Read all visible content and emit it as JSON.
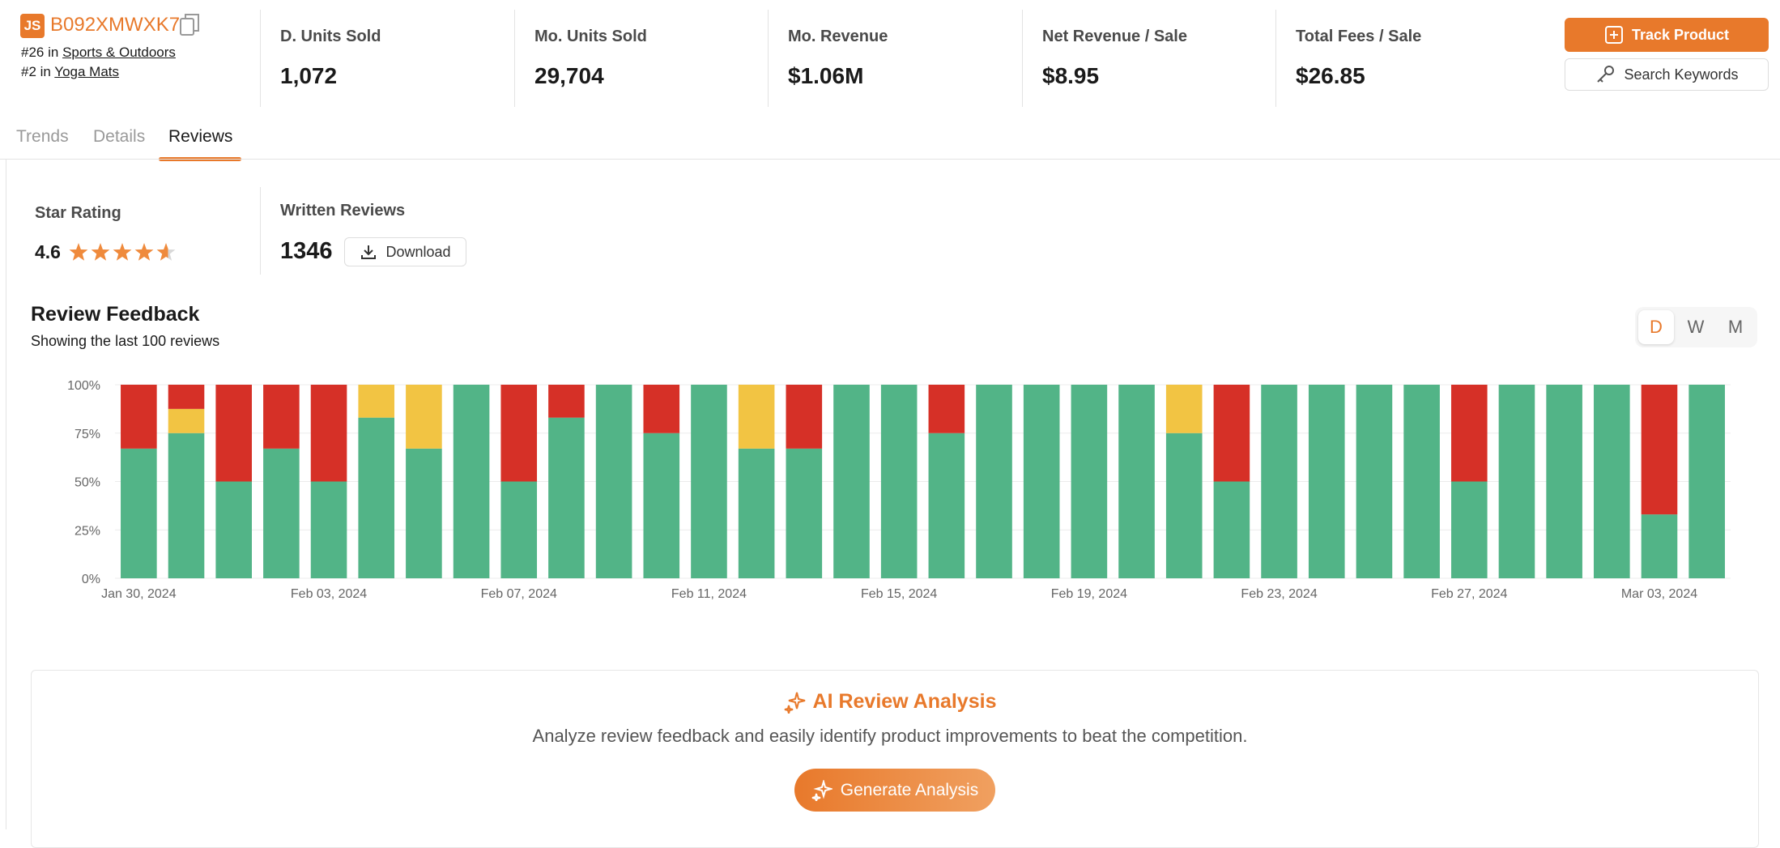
{
  "header": {
    "asin": "B092XMWXK7",
    "logo": "JS",
    "ranks": [
      {
        "rank": "#26 in",
        "category": "Sports & Outdoors"
      },
      {
        "rank": "#2 in",
        "category": "Yoga Mats"
      }
    ]
  },
  "metrics": [
    {
      "label": "D. Units Sold",
      "value": "1,072"
    },
    {
      "label": "Mo. Units Sold",
      "value": "29,704"
    },
    {
      "label": "Mo. Revenue",
      "value": "$1.06M"
    },
    {
      "label": "Net Revenue / Sale",
      "value": "$8.95"
    },
    {
      "label": "Total Fees / Sale",
      "value": "$26.85"
    }
  ],
  "buttons": {
    "track": "Track Product",
    "search": "Search Keywords"
  },
  "tabs": [
    "Trends",
    "Details",
    "Reviews"
  ],
  "active_tab": 2,
  "summary": {
    "star_label": "Star Rating",
    "rating": 4.6,
    "written_label": "Written Reviews",
    "count": 1346,
    "download": "Download"
  },
  "chart_data": {
    "type": "bar",
    "stacked": true,
    "title": "Review Feedback",
    "subtitle": "Showing the last 100 reviews",
    "categories": [
      "Jan 30, 2024",
      null,
      null,
      null,
      "Feb 03, 2024",
      null,
      null,
      null,
      "Feb 07, 2024",
      null,
      null,
      null,
      "Feb 11, 2024",
      null,
      null,
      null,
      "Feb 15, 2024",
      null,
      null,
      null,
      "Feb 19, 2024",
      null,
      null,
      null,
      "Feb 23, 2024",
      null,
      null,
      null,
      "Feb 27, 2024",
      null,
      null,
      null,
      "Mar 03, 2024",
      null
    ],
    "series": [
      {
        "color": "#52b487",
        "values": [
          67,
          75,
          50,
          67,
          50,
          83,
          67,
          100,
          50,
          83,
          100,
          75,
          100,
          67,
          67,
          100,
          100,
          75,
          100,
          100,
          100,
          100,
          75,
          50,
          100,
          100,
          100,
          100,
          50,
          100,
          100,
          100,
          33,
          100
        ]
      },
      {
        "color": "#f2c443",
        "values": [
          0,
          12.5,
          0,
          0,
          0,
          17,
          33,
          0,
          0,
          0,
          0,
          0,
          0,
          33,
          0,
          0,
          0,
          0,
          0,
          0,
          0,
          0,
          25,
          0,
          0,
          0,
          0,
          0,
          0,
          0,
          0,
          0,
          0,
          0
        ]
      },
      {
        "color": "#d63027",
        "values": [
          33,
          12.5,
          50,
          33,
          50,
          0,
          0,
          0,
          50,
          17,
          0,
          25,
          0,
          0,
          33,
          0,
          0,
          25,
          0,
          0,
          0,
          0,
          0,
          50,
          0,
          0,
          0,
          0,
          50,
          0,
          0,
          0,
          67,
          0
        ]
      }
    ],
    "ylim": [
      0,
      100
    ],
    "yticks": [
      {
        "value": 0,
        "label": "0%"
      },
      {
        "value": 25,
        "label": "25%"
      },
      {
        "value": 50,
        "label": "50%"
      },
      {
        "value": 75,
        "label": "75%"
      },
      {
        "value": 100,
        "label": "100%"
      }
    ],
    "grid": true
  },
  "period_toggle": {
    "options": [
      "D",
      "W",
      "M"
    ],
    "active": 0
  },
  "ai": {
    "title": "AI Review Analysis",
    "text": "Analyze review feedback and easily identify product improvements to beat the competition.",
    "button": "Generate Analysis"
  }
}
